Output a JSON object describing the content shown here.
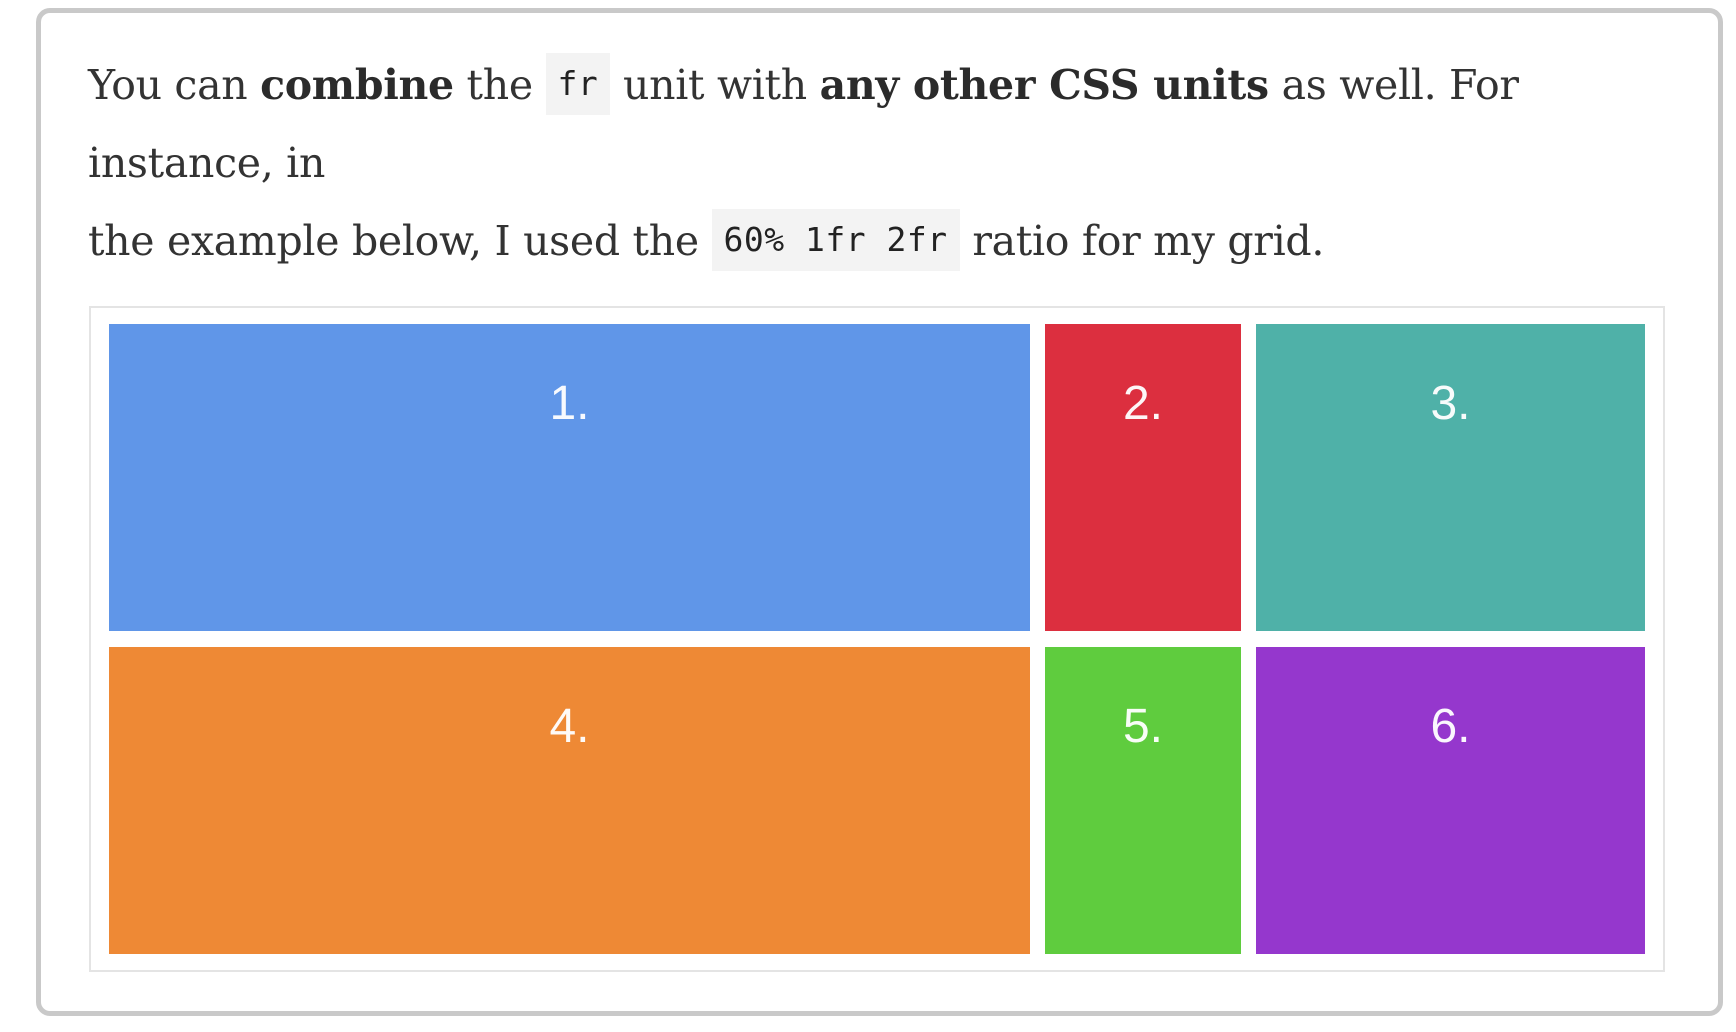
{
  "paragraph": {
    "line1_a": "You can ",
    "line1_b": "combine",
    "line1_c": " the ",
    "code1": "fr",
    "line1_d": " unit with ",
    "line1_e": "any other CSS units",
    "line1_f": " as well. For instance, in",
    "line2_a": "the example below, I used the ",
    "code2": "60% 1fr 2fr",
    "line2_b": " ratio for my grid."
  },
  "grid": {
    "cells": [
      {
        "label": "1.",
        "color": "#6096e8"
      },
      {
        "label": "2.",
        "color": "#dc2f3f"
      },
      {
        "label": "3.",
        "color": "#4fb1a8"
      },
      {
        "label": "4.",
        "color": "#ee8935"
      },
      {
        "label": "5.",
        "color": "#5fcc3e"
      },
      {
        "label": "6.",
        "color": "#9537cd"
      }
    ]
  }
}
